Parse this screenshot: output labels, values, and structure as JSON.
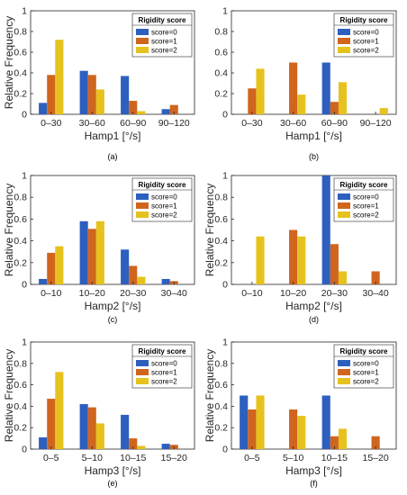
{
  "colors": {
    "score0": "#2D5FBF",
    "score1": "#D0651E",
    "score2": "#E6C21E",
    "score1_alt": "#A98A1A",
    "score2_alt": "#D9CC26",
    "score0_alt": "#6A3FC4"
  },
  "chart_data": [
    {
      "type": "bar",
      "panel_label": "(a)",
      "title": "",
      "xlabel": "Hamp1 [°/s]",
      "ylabel": "Relative Frequency",
      "ylim": [
        0,
        1
      ],
      "yticks": [
        "0",
        "0.2",
        "0.4",
        "0.6",
        "0.8",
        "1"
      ],
      "categories": [
        "0–30",
        "30–60",
        "60–90",
        "90–120"
      ],
      "legend": {
        "title": "Rigidity score",
        "placement": "top-right",
        "entries": [
          "score=0",
          "score=1",
          "score=2"
        ]
      },
      "series": [
        {
          "name": "score=0",
          "values": [
            0.11,
            0.42,
            0.37,
            0.05
          ]
        },
        {
          "name": "score=1",
          "values": [
            0.38,
            0.38,
            0.13,
            0.09
          ]
        },
        {
          "name": "score=2",
          "values": [
            0.72,
            0.24,
            0.03,
            0.0
          ]
        }
      ]
    },
    {
      "type": "bar",
      "panel_label": "(b)",
      "title": "",
      "xlabel": "Hamp1 [°/s]",
      "ylabel": "",
      "ylim": [
        0,
        1
      ],
      "yticks": [
        "0",
        "0.2",
        "0.4",
        "0.6",
        "0.8",
        "1"
      ],
      "categories": [
        "0–30",
        "30–60",
        "60–90",
        "90–120"
      ],
      "legend": {
        "title": "Rigidity score",
        "placement": "top-right",
        "entries": [
          "score=0",
          "score=1",
          "score=2"
        ]
      },
      "series": [
        {
          "name": "score=0",
          "values": [
            0.0,
            0.0,
            0.5,
            0.0
          ]
        },
        {
          "name": "score=1",
          "values": [
            0.25,
            0.5,
            0.12,
            0.0
          ]
        },
        {
          "name": "score=2",
          "values": [
            0.44,
            0.19,
            0.31,
            0.06
          ]
        }
      ]
    },
    {
      "type": "bar",
      "panel_label": "(c)",
      "title": "",
      "xlabel": "Hamp2 [°/s]",
      "ylabel": "Relative Frequency",
      "ylim": [
        0,
        1
      ],
      "yticks": [
        "0",
        "0.2",
        "0.4",
        "0.6",
        "0.8",
        "1"
      ],
      "categories": [
        "0–10",
        "10–20",
        "20–30",
        "30–40"
      ],
      "legend": {
        "title": "Rigidity score",
        "placement": "top-right",
        "entries": [
          "score=0",
          "score=1",
          "score=2"
        ]
      },
      "series": [
        {
          "name": "score=0",
          "values": [
            0.05,
            0.58,
            0.32,
            0.05
          ]
        },
        {
          "name": "score=1",
          "values": [
            0.29,
            0.51,
            0.17,
            0.03
          ]
        },
        {
          "name": "score=2",
          "values": [
            0.35,
            0.58,
            0.07,
            0.0
          ]
        }
      ]
    },
    {
      "type": "bar",
      "panel_label": "(d)",
      "title": "",
      "xlabel": "Hamp2 [°/s]",
      "ylabel": "Relative Frequency",
      "ylim": [
        0,
        1
      ],
      "yticks": [
        "0",
        "0.2",
        "0.4",
        "0.6",
        "0.8",
        "1"
      ],
      "categories": [
        "0–10",
        "10–20",
        "20–30",
        "30–40"
      ],
      "legend": {
        "title": "Rigidity score",
        "placement": "top-right",
        "entries": [
          "score=0",
          "score=1",
          "score=2"
        ]
      },
      "series": [
        {
          "name": "score=0",
          "values": [
            0.0,
            0.0,
            1.0,
            0.0
          ]
        },
        {
          "name": "score=1",
          "values": [
            0.0,
            0.5,
            0.37,
            0.12
          ]
        },
        {
          "name": "score=2",
          "values": [
            0.44,
            0.44,
            0.12,
            0.0
          ]
        }
      ]
    },
    {
      "type": "bar",
      "panel_label": "(e)",
      "title": "",
      "xlabel": "Hamp3 [°/s]",
      "ylabel": "Relative Frequency",
      "ylim": [
        0,
        1
      ],
      "yticks": [
        "0",
        "0.2",
        "0.4",
        "0.6",
        "0.8",
        "1"
      ],
      "categories": [
        "0–5",
        "5–10",
        "10–15",
        "15–20"
      ],
      "legend": {
        "title": "Rigidity score",
        "placement": "top-right",
        "entries": [
          "score=0",
          "score=1",
          "score=2"
        ]
      },
      "series": [
        {
          "name": "score=0",
          "values": [
            0.11,
            0.42,
            0.32,
            0.05
          ]
        },
        {
          "name": "score=1",
          "values": [
            0.47,
            0.39,
            0.1,
            0.04
          ]
        },
        {
          "name": "score=2",
          "values": [
            0.72,
            0.24,
            0.03,
            0.0
          ]
        }
      ]
    },
    {
      "type": "bar",
      "panel_label": "(f)",
      "title": "",
      "xlabel": "Hamp3 [°/s]",
      "ylabel": "Relative Frequency",
      "ylim": [
        0,
        1
      ],
      "yticks": [
        "0",
        "0.2",
        "0.4",
        "0.6",
        "0.8",
        "1"
      ],
      "categories": [
        "0–5",
        "5–10",
        "10–15",
        "15–20"
      ],
      "legend": {
        "title": "Rigidity score",
        "placement": "top-right",
        "entries": [
          "score=0",
          "score=1",
          "score=2"
        ]
      },
      "series": [
        {
          "name": "score=0",
          "values": [
            0.5,
            0.0,
            0.5,
            0.0
          ]
        },
        {
          "name": "score=1",
          "values": [
            0.37,
            0.37,
            0.12,
            0.12
          ]
        },
        {
          "name": "score=2",
          "values": [
            0.5,
            0.31,
            0.19,
            0.0
          ]
        }
      ]
    }
  ]
}
